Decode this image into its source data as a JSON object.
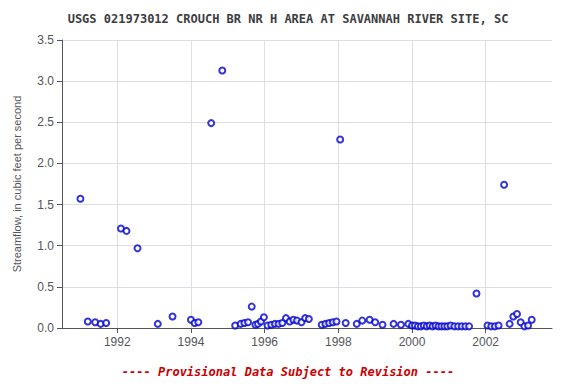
{
  "chart_data": {
    "type": "scatter",
    "title": "USGS 021973012 CROUCH BR NR H AREA AT SAVANNAH RIVER SITE, SC",
    "ylabel": "Streamflow, in cubic feet per second",
    "annotations": [
      {
        "text": "---- Provisional Data Subject to Revision ----",
        "color": "#cc0000"
      }
    ],
    "x": [
      1991.0,
      1991.2,
      1991.4,
      1991.55,
      1991.7,
      1992.1,
      1992.25,
      1992.55,
      1993.1,
      1993.5,
      1994.0,
      1994.1,
      1994.2,
      1994.55,
      1994.85,
      1995.2,
      1995.35,
      1995.45,
      1995.55,
      1995.65,
      1995.75,
      1995.82,
      1995.9,
      1995.98,
      1996.08,
      1996.18,
      1996.28,
      1996.38,
      1996.48,
      1996.58,
      1996.68,
      1996.78,
      1996.88,
      1997.0,
      1997.1,
      1997.2,
      1997.55,
      1997.65,
      1997.75,
      1997.85,
      1997.95,
      1998.05,
      1998.2,
      1998.5,
      1998.65,
      1998.85,
      1999.0,
      1999.2,
      1999.5,
      1999.7,
      1999.9,
      2000.0,
      2000.08,
      2000.16,
      2000.24,
      2000.32,
      2000.4,
      2000.48,
      2000.56,
      2000.64,
      2000.72,
      2000.8,
      2000.88,
      2000.96,
      2001.05,
      2001.15,
      2001.25,
      2001.35,
      2001.45,
      2001.55,
      2001.75,
      2002.05,
      2002.15,
      2002.25,
      2002.35,
      2002.5,
      2002.65,
      2002.75,
      2002.85,
      2002.95,
      2003.05,
      2003.15,
      2003.25
    ],
    "values": [
      1.57,
      0.08,
      0.07,
      0.05,
      0.06,
      1.21,
      1.18,
      0.97,
      0.05,
      0.14,
      0.1,
      0.06,
      0.07,
      2.49,
      3.13,
      0.03,
      0.05,
      0.06,
      0.07,
      0.26,
      0.04,
      0.05,
      0.08,
      0.13,
      0.03,
      0.04,
      0.05,
      0.05,
      0.06,
      0.12,
      0.08,
      0.1,
      0.09,
      0.07,
      0.12,
      0.11,
      0.04,
      0.05,
      0.06,
      0.07,
      0.08,
      2.29,
      0.06,
      0.05,
      0.09,
      0.1,
      0.07,
      0.04,
      0.05,
      0.04,
      0.05,
      0.03,
      0.03,
      0.02,
      0.02,
      0.03,
      0.02,
      0.03,
      0.02,
      0.03,
      0.02,
      0.02,
      0.02,
      0.02,
      0.03,
      0.02,
      0.02,
      0.02,
      0.02,
      0.02,
      0.42,
      0.03,
      0.02,
      0.02,
      0.03,
      1.74,
      0.05,
      0.14,
      0.17,
      0.07,
      0.02,
      0.03,
      0.1
    ],
    "color": "#0000cc",
    "marker": "open_circle",
    "xlim": [
      1990.5,
      2003.8
    ],
    "ylim": [
      0,
      3.5
    ],
    "xticks": [
      1992,
      1994,
      1996,
      1998,
      2000,
      2002
    ],
    "yticks": [
      {
        "value": 0,
        "label": "0.0"
      },
      0.5,
      {
        "value": 1,
        "label": "1.0"
      },
      1.5,
      {
        "value": 2,
        "label": "2.0"
      },
      2.5,
      {
        "value": 3,
        "label": "3.0"
      },
      3.5
    ],
    "grid": true
  }
}
